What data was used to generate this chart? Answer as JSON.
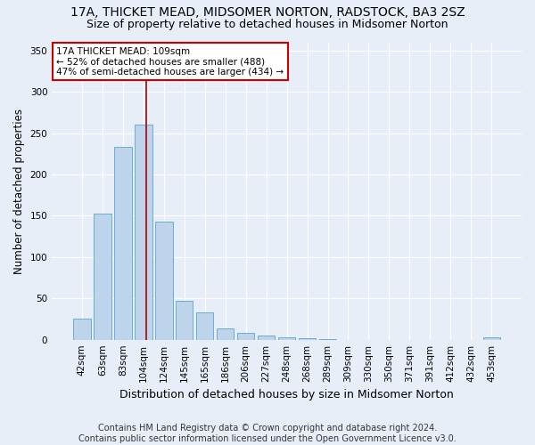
{
  "title": "17A, THICKET MEAD, MIDSOMER NORTON, RADSTOCK, BA3 2SZ",
  "subtitle": "Size of property relative to detached houses in Midsomer Norton",
  "xlabel": "Distribution of detached houses by size in Midsomer Norton",
  "ylabel": "Number of detached properties",
  "footer": "Contains HM Land Registry data © Crown copyright and database right 2024.\nContains public sector information licensed under the Open Government Licence v3.0.",
  "bar_labels": [
    "42sqm",
    "63sqm",
    "83sqm",
    "104sqm",
    "124sqm",
    "145sqm",
    "165sqm",
    "186sqm",
    "206sqm",
    "227sqm",
    "248sqm",
    "268sqm",
    "289sqm",
    "309sqm",
    "330sqm",
    "350sqm",
    "371sqm",
    "391sqm",
    "412sqm",
    "432sqm",
    "453sqm"
  ],
  "bar_values": [
    25,
    153,
    233,
    260,
    143,
    47,
    33,
    14,
    8,
    5,
    3,
    2,
    1,
    0,
    0,
    0,
    0,
    0,
    0,
    0,
    3
  ],
  "bar_color": "#bdd4eb",
  "bar_edge_color": "#6aadd5",
  "ylim": [
    0,
    360
  ],
  "yticks": [
    0,
    50,
    100,
    150,
    200,
    250,
    300,
    350
  ],
  "vline_x_index": 3,
  "vline_x_offset": 0.1,
  "vline_color": "#aa0000",
  "annotation_text": "17A THICKET MEAD: 109sqm\n← 52% of detached houses are smaller (488)\n47% of semi-detached houses are larger (434) →",
  "annotation_box_color": "#ffffff",
  "annotation_box_edge": "#cc0000",
  "bg_color": "#e8eef8",
  "plot_bg": "#e8eef8",
  "grid_color": "#ffffff",
  "title_fontsize": 10,
  "subtitle_fontsize": 9,
  "xlabel_fontsize": 9,
  "ylabel_fontsize": 8.5,
  "tick_fontsize": 7.5,
  "footer_fontsize": 7
}
